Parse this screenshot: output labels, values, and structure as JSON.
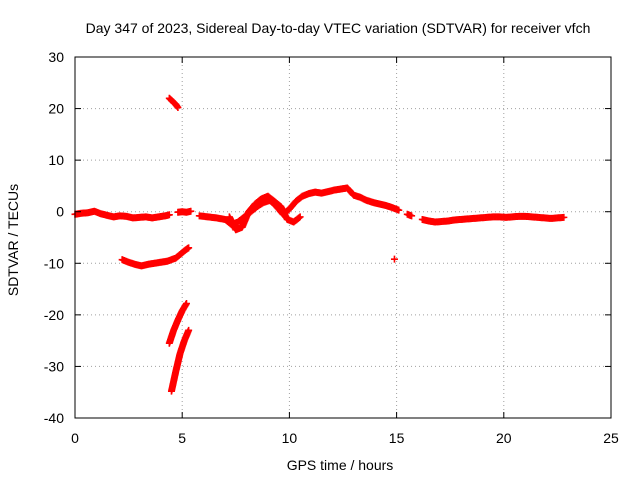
{
  "chart_data": {
    "type": "scatter",
    "title": "Day 347 of 2023, Sidereal Day-to-day VTEC variation (SDTVAR) for receiver vfch",
    "xlabel": "GPS time / hours",
    "ylabel": "SDTVAR / TECUs",
    "xlim": [
      0,
      25
    ],
    "ylim": [
      -40,
      30
    ],
    "xticks": [
      0,
      5,
      10,
      15,
      20,
      25
    ],
    "yticks": [
      -40,
      -30,
      -20,
      -10,
      0,
      10,
      20,
      30
    ],
    "grid": true,
    "marker": "+",
    "color": "#ff0000",
    "series": [
      {
        "name": "SDTVAR",
        "segments": [
          {
            "x": [
              0.0,
              0.3,
              0.6,
              0.9,
              1.2,
              1.5,
              1.8,
              2.1,
              2.4,
              2.7,
              3.0,
              3.3,
              3.6,
              3.9,
              4.2,
              4.4
            ],
            "y": [
              -0.5,
              -0.3,
              -0.2,
              0.1,
              -0.4,
              -0.7,
              -1.0,
              -0.8,
              -0.9,
              -1.2,
              -1.1,
              -1.0,
              -1.2,
              -1.0,
              -0.8,
              -0.6
            ]
          },
          {
            "x": [
              2.2,
              2.5,
              2.8,
              3.1,
              3.4,
              3.7,
              4.0,
              4.3,
              4.5,
              4.7,
              4.9,
              5.1,
              5.3
            ],
            "y": [
              -9.3,
              -9.8,
              -10.2,
              -10.5,
              -10.2,
              -10.0,
              -9.8,
              -9.6,
              -9.3,
              -9.0,
              -8.3,
              -7.6,
              -7.0
            ]
          },
          {
            "x": [
              4.4,
              4.5,
              4.6,
              4.7,
              4.8
            ],
            "y": [
              22.0,
              21.6,
              21.2,
              20.8,
              20.2
            ]
          },
          {
            "x": [
              4.4,
              4.6,
              4.8,
              5.0,
              5.2
            ],
            "y": [
              -25.5,
              -23.0,
              -21.0,
              -19.2,
              -17.8
            ]
          },
          {
            "x": [
              4.5,
              4.7,
              4.9,
              5.1,
              5.3
            ],
            "y": [
              -34.8,
              -31.0,
              -27.5,
              -25.0,
              -23.0
            ]
          },
          {
            "x": [
              4.8,
              5.0,
              5.2,
              5.4
            ],
            "y": [
              -0.1,
              0.0,
              -0.1,
              0.1
            ]
          },
          {
            "x": [
              5.8,
              6.2,
              6.6,
              7.0,
              7.3,
              7.6,
              7.9,
              8.2,
              8.5,
              8.8,
              9.1,
              9.4,
              9.7,
              10.0,
              10.3,
              10.6,
              10.9,
              11.2,
              11.5,
              11.8,
              12.1,
              12.4,
              12.7,
              13.0,
              13.3,
              13.6,
              13.9,
              14.2,
              14.5,
              14.8,
              15.1
            ],
            "y": [
              -0.8,
              -1.0,
              -1.2,
              -1.5,
              -2.5,
              -2.0,
              -1.0,
              0.0,
              1.0,
              1.8,
              2.2,
              1.0,
              -0.5,
              0.5,
              2.0,
              3.0,
              3.5,
              3.8,
              3.6,
              3.9,
              4.2,
              4.4,
              4.6,
              3.2,
              2.8,
              2.2,
              1.8,
              1.5,
              1.2,
              0.8,
              0.3
            ]
          },
          {
            "x": [
              7.2,
              7.5,
              7.8,
              8.1,
              8.4,
              8.7,
              9.0,
              9.3,
              9.6,
              9.9,
              10.2,
              10.5
            ],
            "y": [
              -1.0,
              -3.5,
              -3.0,
              0.0,
              1.5,
              2.5,
              3.0,
              2.0,
              1.0,
              -1.5,
              -2.0,
              -1.0
            ]
          },
          {
            "x": [
              15.5,
              15.7
            ],
            "y": [
              -0.5,
              -0.8
            ]
          },
          {
            "x": [
              14.9
            ],
            "y": [
              -9.2
            ]
          },
          {
            "x": [
              16.2,
              16.5,
              16.8,
              17.1,
              17.4,
              17.7,
              18.0,
              18.3,
              18.6,
              18.9,
              19.2,
              19.5,
              19.8,
              20.1,
              20.4,
              20.7,
              21.0,
              21.3,
              21.6,
              21.9,
              22.2,
              22.5,
              22.8
            ],
            "y": [
              -1.5,
              -1.8,
              -2.0,
              -1.9,
              -1.8,
              -1.6,
              -1.5,
              -1.4,
              -1.3,
              -1.2,
              -1.1,
              -1.0,
              -1.0,
              -1.1,
              -1.0,
              -0.9,
              -0.9,
              -1.0,
              -1.1,
              -1.2,
              -1.3,
              -1.2,
              -1.1
            ]
          }
        ]
      }
    ]
  }
}
